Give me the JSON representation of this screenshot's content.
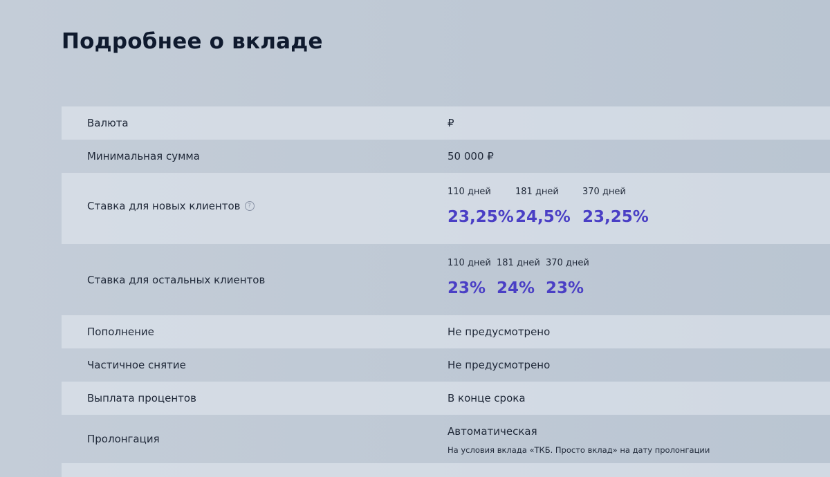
{
  "page": {
    "title": "Подробнее о вкладе"
  },
  "details": {
    "currency": {
      "label": "Валюта",
      "value": "₽"
    },
    "min_amount": {
      "label": "Минимальная сумма",
      "value": "50 000 ₽"
    },
    "rate_new_clients": {
      "label": "Ставка для новых клиентов",
      "help_icon": "question-circle-icon",
      "terms": [
        {
          "term": "110 дней",
          "rate": "23,25%"
        },
        {
          "term": "181 дней",
          "rate": "24,5%"
        },
        {
          "term": "370 дней",
          "rate": "23,25%"
        }
      ]
    },
    "rate_other_clients": {
      "label": "Ставка для остальных клиентов",
      "terms": [
        {
          "term": "110 дней",
          "rate": "23%"
        },
        {
          "term": "181 дней",
          "rate": "24%"
        },
        {
          "term": "370 дней",
          "rate": "23%"
        }
      ]
    },
    "replenishment": {
      "label": "Пополнение",
      "value": "Не предусмотрено"
    },
    "partial_withdrawal": {
      "label": "Частичное снятие",
      "value": "Не предусмотрено"
    },
    "interest_payment": {
      "label": "Выплата процентов",
      "value": "В конце срока"
    },
    "prolongation": {
      "label": "Пролонгация",
      "value": "Автоматическая",
      "note": "На условия вклада «ТКБ. Просто вклад» на дату пролонгации"
    }
  },
  "colors": {
    "accent": "#4a3fc5",
    "title": "#0f1a2e",
    "row_shade": "#e4eaf1"
  }
}
